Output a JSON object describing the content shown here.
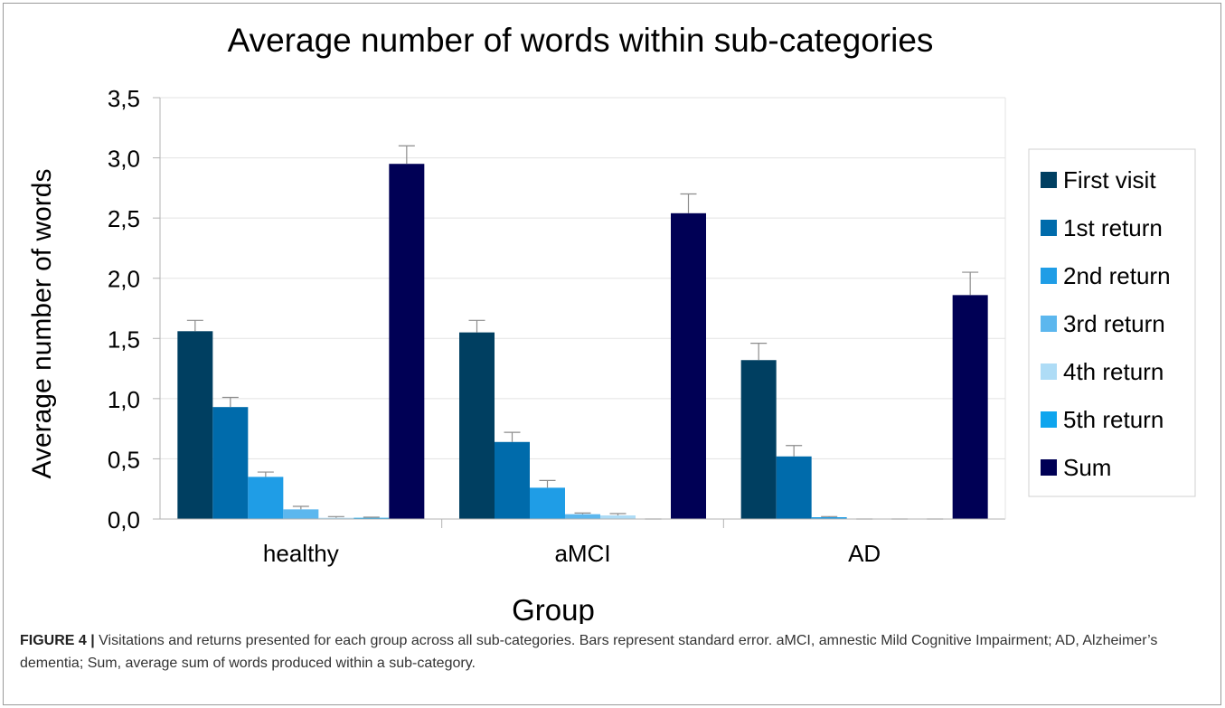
{
  "chart_data": {
    "type": "bar",
    "title": "Average number of words within sub-categories",
    "xlabel": "Group",
    "ylabel": "Average number of words",
    "categories": [
      "healthy",
      "aMCI",
      "AD"
    ],
    "ylim": [
      0,
      3.5
    ],
    "yticks": [
      "0,0",
      "0,5",
      "1,0",
      "1,5",
      "2,0",
      "2,5",
      "3,0",
      "3,5"
    ],
    "ytick_values": [
      0,
      0.5,
      1.0,
      1.5,
      2.0,
      2.5,
      3.0,
      3.5
    ],
    "grid": true,
    "legend_position": "right",
    "series": [
      {
        "name": "First visit",
        "color": "#003f61",
        "values": [
          1.56,
          1.55,
          1.32
        ],
        "errors": [
          0.09,
          0.1,
          0.14
        ]
      },
      {
        "name": "1st return",
        "color": "#006bab",
        "values": [
          0.93,
          0.64,
          0.52
        ],
        "errors": [
          0.08,
          0.08,
          0.09
        ]
      },
      {
        "name": "2nd return",
        "color": "#1f9de6",
        "values": [
          0.35,
          0.26,
          0.015
        ],
        "errors": [
          0.04,
          0.06,
          0.005
        ]
      },
      {
        "name": "3rd return",
        "color": "#5cb7ee",
        "values": [
          0.08,
          0.04,
          0.0
        ],
        "errors": [
          0.025,
          0.01,
          0.0
        ]
      },
      {
        "name": "4th return",
        "color": "#aedcf6",
        "values": [
          0.01,
          0.03,
          0.0
        ],
        "errors": [
          0.01,
          0.015,
          0.0
        ]
      },
      {
        "name": "5th return",
        "color": "#0ea5ee",
        "values": [
          0.01,
          0.0,
          0.0
        ],
        "errors": [
          0.005,
          0.0,
          0.0
        ]
      },
      {
        "name": "Sum",
        "color": "#000055",
        "values": [
          2.95,
          2.54,
          1.86
        ],
        "errors": [
          0.15,
          0.16,
          0.19
        ]
      }
    ]
  },
  "caption": {
    "label": "FIGURE 4 |",
    "text": " Visitations and returns presented for each group across all sub-categories. Bars represent standard error. aMCI, amnestic Mild Cognitive Impairment; AD, Alzheimer’s dementia; Sum, average sum of words produced within a sub-category."
  }
}
